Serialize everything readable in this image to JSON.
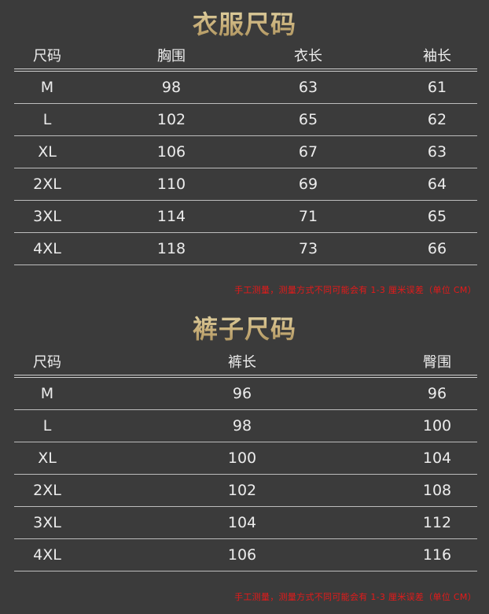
{
  "tops": {
    "title": "衣服尺码",
    "headers": [
      "尺码",
      "胸围",
      "衣长",
      "袖长"
    ],
    "rows": [
      [
        "M",
        "98",
        "63",
        "61"
      ],
      [
        "L",
        "102",
        "65",
        "62"
      ],
      [
        "XL",
        "106",
        "67",
        "63"
      ],
      [
        "2XL",
        "110",
        "69",
        "64"
      ],
      [
        "3XL",
        "114",
        "71",
        "65"
      ],
      [
        "4XL",
        "118",
        "73",
        "66"
      ]
    ],
    "note": "手工测量，测量方式不同可能会有 1-3 厘米误差（单位 CM）"
  },
  "pants": {
    "title": "裤子尺码",
    "headers": [
      "尺码",
      "裤长",
      "臀围"
    ],
    "rows": [
      [
        "M",
        "96",
        "96"
      ],
      [
        "L",
        "98",
        "100"
      ],
      [
        "XL",
        "100",
        "104"
      ],
      [
        "2XL",
        "102",
        "108"
      ],
      [
        "3XL",
        "104",
        "112"
      ],
      [
        "4XL",
        "106",
        "116"
      ]
    ],
    "note": "手工测量，测量方式不同可能会有 1-3 厘米误差（单位 CM）"
  },
  "colors": {
    "background": "#3b3b3b",
    "title_gold": "#c9b07a",
    "note_red": "#e51a1a"
  }
}
